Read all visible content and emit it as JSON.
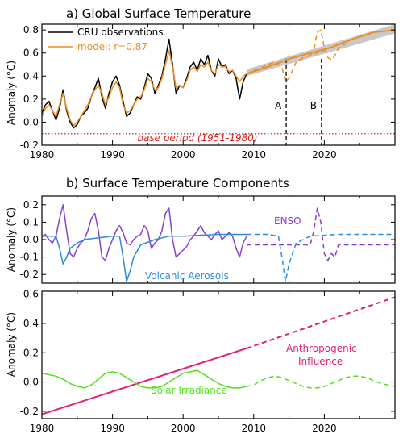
{
  "chart_data": [
    {
      "type": "line",
      "title": "a) Global Surface Temperature",
      "ylabel": "Anomaly (°C)",
      "xlim": [
        1980,
        2030
      ],
      "ylim": [
        -0.2,
        0.85
      ],
      "xticks": [
        1980,
        1990,
        2000,
        2010,
        2020
      ],
      "yticks": [
        -0.2,
        0.0,
        0.2,
        0.4,
        0.6,
        0.8
      ],
      "xtick_labels": [
        "1980",
        "1990",
        "2000",
        "2010",
        "2020"
      ],
      "ytick_labels": [
        "-0.2",
        "0.0",
        "0.2",
        "0.4",
        "0.6",
        "0.8"
      ],
      "series": [
        {
          "name": "CRU observations",
          "color": "#000000",
          "style": "solid",
          "x": [
            1980.0,
            1980.5,
            1981.0,
            1981.5,
            1982.0,
            1982.5,
            1983.0,
            1983.5,
            1984.0,
            1984.5,
            1985.0,
            1985.5,
            1986.0,
            1986.5,
            1987.0,
            1987.5,
            1988.0,
            1988.5,
            1989.0,
            1989.5,
            1990.0,
            1990.5,
            1991.0,
            1991.5,
            1992.0,
            1992.5,
            1993.0,
            1993.5,
            1994.0,
            1994.5,
            1995.0,
            1995.5,
            1996.0,
            1996.5,
            1997.0,
            1997.5,
            1998.0,
            1998.5,
            1999.0,
            1999.5,
            2000.0,
            2000.5,
            2001.0,
            2001.5,
            2002.0,
            2002.5,
            2003.0,
            2003.5,
            2004.0,
            2004.5,
            2005.0,
            2005.5,
            2006.0,
            2006.5,
            2007.0,
            2007.5,
            2008.0,
            2008.5,
            2009.0
          ],
          "values": [
            0.08,
            0.15,
            0.18,
            0.1,
            0.02,
            0.12,
            0.28,
            0.1,
            0.0,
            -0.05,
            -0.02,
            0.05,
            0.08,
            0.12,
            0.22,
            0.3,
            0.38,
            0.22,
            0.12,
            0.25,
            0.35,
            0.4,
            0.32,
            0.18,
            0.05,
            0.08,
            0.15,
            0.22,
            0.2,
            0.3,
            0.42,
            0.38,
            0.25,
            0.32,
            0.4,
            0.55,
            0.72,
            0.5,
            0.25,
            0.32,
            0.3,
            0.38,
            0.48,
            0.52,
            0.45,
            0.55,
            0.5,
            0.58,
            0.45,
            0.4,
            0.55,
            0.48,
            0.5,
            0.42,
            0.45,
            0.38,
            0.2,
            0.35,
            0.42
          ]
        },
        {
          "name": "model: r=0.87",
          "color": "#f08c1e",
          "style": "solid",
          "x": [
            1980.0,
            1980.5,
            1981.0,
            1981.5,
            1982.0,
            1982.5,
            1983.0,
            1983.5,
            1984.0,
            1984.5,
            1985.0,
            1985.5,
            1986.0,
            1986.5,
            1987.0,
            1987.5,
            1988.0,
            1988.5,
            1989.0,
            1989.5,
            1990.0,
            1990.5,
            1991.0,
            1991.5,
            1992.0,
            1992.5,
            1993.0,
            1993.5,
            1994.0,
            1994.5,
            1995.0,
            1995.5,
            1996.0,
            1996.5,
            1997.0,
            1997.5,
            1998.0,
            1998.5,
            1999.0,
            1999.5,
            2000.0,
            2000.5,
            2001.0,
            2001.5,
            2002.0,
            2002.5,
            2003.0,
            2003.5,
            2004.0,
            2004.5,
            2005.0,
            2005.5,
            2006.0,
            2006.5,
            2007.0,
            2007.5,
            2008.0,
            2008.5,
            2009.0
          ],
          "values": [
            0.05,
            0.12,
            0.15,
            0.1,
            0.05,
            0.15,
            0.25,
            0.12,
            0.02,
            -0.03,
            0.0,
            0.05,
            0.1,
            0.15,
            0.22,
            0.28,
            0.32,
            0.25,
            0.15,
            0.22,
            0.3,
            0.35,
            0.3,
            0.15,
            0.08,
            0.1,
            0.15,
            0.2,
            0.22,
            0.28,
            0.38,
            0.35,
            0.28,
            0.3,
            0.38,
            0.5,
            0.62,
            0.48,
            0.3,
            0.32,
            0.3,
            0.36,
            0.45,
            0.48,
            0.44,
            0.5,
            0.48,
            0.52,
            0.45,
            0.42,
            0.5,
            0.48,
            0.48,
            0.44,
            0.45,
            0.4,
            0.35,
            0.4,
            0.42
          ]
        },
        {
          "name": "projection A",
          "color": "#f08c1e",
          "style": "dashed",
          "x": [
            2009.0,
            2010.0,
            2011.0,
            2012.0,
            2013.0,
            2014.0,
            2014.5,
            2015.0,
            2015.5,
            2016.0,
            2017.0,
            2018.0,
            2019.0,
            2020.0
          ],
          "values": [
            0.42,
            0.45,
            0.47,
            0.5,
            0.52,
            0.48,
            0.35,
            0.38,
            0.45,
            0.52,
            0.56,
            0.58,
            0.6,
            0.62
          ]
        },
        {
          "name": "projection B",
          "color": "#f08c1e",
          "style": "dashed",
          "x": [
            2018.0,
            2018.5,
            2019.0,
            2019.5,
            2020.0,
            2020.5,
            2021.0,
            2021.5,
            2022.0,
            2023.0
          ],
          "values": [
            0.58,
            0.62,
            0.78,
            0.8,
            0.65,
            0.56,
            0.54,
            0.58,
            0.64,
            0.68
          ]
        },
        {
          "name": "trend",
          "color": "#f08c1e",
          "style": "solid",
          "x": [
            2009.0,
            2012.0,
            2015.0,
            2018.0,
            2021.0,
            2024.0,
            2027.0,
            2030.0
          ],
          "values": [
            0.42,
            0.48,
            0.55,
            0.6,
            0.65,
            0.72,
            0.78,
            0.8
          ]
        }
      ],
      "base_line": {
        "value": -0.1,
        "label": "base period (1951-1980)",
        "color": "#d62020"
      },
      "markers": [
        {
          "label": "A",
          "x": 2014.6
        },
        {
          "label": "B",
          "x": 2019.6
        }
      ],
      "legend_placement": "top-left"
    },
    {
      "type": "line",
      "title": "b) Surface Temperature Components",
      "ylabel": "Anomaly (°C)",
      "xlim": [
        1980,
        2030
      ],
      "ylim": [
        -0.25,
        0.25
      ],
      "yticks": [
        -0.2,
        -0.1,
        0.0,
        0.1,
        0.2
      ],
      "ytick_labels": [
        "-0.2",
        "-0.1",
        "0.0",
        "0.1",
        "0.2"
      ],
      "series": [
        {
          "name": "ENSO",
          "color": "#8a3fd0",
          "style": "solid",
          "x": [
            1980.0,
            1980.5,
            1981.0,
            1981.5,
            1982.0,
            1982.5,
            1983.0,
            1983.5,
            1984.0,
            1984.5,
            1985.0,
            1985.5,
            1986.0,
            1986.5,
            1987.0,
            1987.5,
            1988.0,
            1988.5,
            1989.0,
            1989.5,
            1990.0,
            1990.5,
            1991.0,
            1991.5,
            1992.0,
            1992.5,
            1993.0,
            1993.5,
            1994.0,
            1994.5,
            1995.0,
            1995.5,
            1996.0,
            1996.5,
            1997.0,
            1997.5,
            1998.0,
            1998.5,
            1999.0,
            1999.5,
            2000.0,
            2000.5,
            2001.0,
            2001.5,
            2002.0,
            2002.5,
            2003.0,
            2003.5,
            2004.0,
            2004.5,
            2005.0,
            2005.5,
            2006.0,
            2006.5,
            2007.0,
            2007.5,
            2008.0,
            2008.5,
            2009.0
          ],
          "values": [
            0.02,
            0.03,
            0.0,
            -0.02,
            0.02,
            0.12,
            0.2,
            0.05,
            -0.08,
            -0.1,
            -0.05,
            -0.02,
            0.0,
            0.05,
            0.12,
            0.15,
            0.05,
            -0.1,
            -0.12,
            -0.05,
            0.0,
            0.05,
            0.08,
            0.04,
            -0.02,
            -0.03,
            0.0,
            0.02,
            0.03,
            0.08,
            0.05,
            -0.05,
            -0.02,
            0.0,
            0.05,
            0.15,
            0.18,
            0.0,
            -0.1,
            -0.08,
            -0.06,
            -0.04,
            0.0,
            0.02,
            0.05,
            0.08,
            0.04,
            0.02,
            0.0,
            0.03,
            0.05,
            0.0,
            0.02,
            0.04,
            0.02,
            -0.05,
            -0.1,
            -0.02,
            0.02
          ]
        },
        {
          "name": "ENSO projection",
          "color": "#8a3fd0",
          "style": "dashed",
          "x": [
            2009.0,
            2012.0,
            2015.0,
            2018.0,
            2018.5,
            2019.0,
            2019.5,
            2020.0,
            2020.5,
            2021.0,
            2021.5,
            2022.0,
            2026.0,
            2030.0
          ],
          "values": [
            -0.03,
            -0.03,
            -0.03,
            -0.03,
            0.05,
            0.18,
            0.1,
            -0.08,
            -0.12,
            -0.08,
            -0.1,
            -0.03,
            -0.03,
            -0.03
          ]
        },
        {
          "name": "Volcanic Aerosols",
          "color": "#2a8be0",
          "style": "solid",
          "x": [
            1980.0,
            1981.0,
            1982.0,
            1982.5,
            1983.0,
            1983.5,
            1984.0,
            1985.0,
            1986.0,
            1988.0,
            1990.0,
            1991.0,
            1991.5,
            1992.0,
            1992.5,
            1993.0,
            1994.0,
            1996.0,
            1998.0,
            2000.0,
            2005.0,
            2009.0
          ],
          "values": [
            0.02,
            0.02,
            0.02,
            -0.05,
            -0.14,
            -0.1,
            -0.05,
            -0.02,
            0.0,
            0.01,
            0.02,
            0.02,
            -0.1,
            -0.24,
            -0.18,
            -0.1,
            -0.03,
            0.0,
            0.02,
            0.02,
            0.03,
            0.03
          ],
          "label": "Volcanic Aerosols"
        },
        {
          "name": "Volcanic projection",
          "color": "#2a8be0",
          "style": "dashed",
          "x": [
            2009.0,
            2012.0,
            2013.5,
            2014.0,
            2014.5,
            2015.0,
            2016.0,
            2018.0,
            2022.0,
            2030.0
          ],
          "values": [
            0.03,
            0.03,
            0.02,
            -0.1,
            -0.24,
            -0.14,
            -0.02,
            0.02,
            0.03,
            0.03
          ]
        }
      ]
    },
    {
      "type": "line",
      "ylabel": "Anomaly (°C)",
      "xlim": [
        1980,
        2030
      ],
      "ylim": [
        -0.25,
        0.62
      ],
      "xticks": [
        1980,
        1990,
        2000,
        2010,
        2020
      ],
      "yticks": [
        -0.2,
        0.0,
        0.2,
        0.4,
        0.6
      ],
      "xtick_labels": [
        "1980",
        "1990",
        "2000",
        "2010",
        "2020"
      ],
      "ytick_labels": [
        "-0.2",
        "0.0",
        "0.2",
        "0.4",
        "0.6"
      ],
      "series": [
        {
          "name": "Anthropogenic Influence",
          "color": "#e0207a",
          "style": "solid",
          "x": [
            1980,
            2009
          ],
          "values": [
            -0.22,
            0.23
          ]
        },
        {
          "name": "Anthropogenic projection",
          "color": "#e0207a",
          "style": "dashed",
          "x": [
            2009,
            2030
          ],
          "values": [
            0.23,
            0.58
          ]
        },
        {
          "name": "Solar Irradiance",
          "color": "#50e020",
          "style": "solid",
          "x": [
            1980.0,
            1981.0,
            1982.0,
            1983.0,
            1984.0,
            1985.0,
            1986.0,
            1987.0,
            1988.0,
            1989.0,
            1990.0,
            1991.0,
            1992.0,
            1993.0,
            1994.0,
            1995.0,
            1996.0,
            1997.0,
            1998.0,
            1999.0,
            2000.0,
            2001.0,
            2002.0,
            2003.0,
            2004.0,
            2005.0,
            2006.0,
            2007.0,
            2008.0,
            2009.0
          ],
          "values": [
            0.06,
            0.05,
            0.04,
            0.02,
            -0.01,
            -0.03,
            -0.04,
            -0.02,
            0.02,
            0.06,
            0.07,
            0.06,
            0.03,
            0.0,
            -0.03,
            -0.04,
            -0.04,
            -0.03,
            0.0,
            0.03,
            0.06,
            0.07,
            0.08,
            0.05,
            0.02,
            -0.01,
            -0.03,
            -0.04,
            -0.04,
            -0.03
          ]
        },
        {
          "name": "Solar projection",
          "color": "#50e020",
          "style": "dashed",
          "x": [
            2009.0,
            2010.0,
            2011.0,
            2012.0,
            2013.0,
            2014.0,
            2015.0,
            2016.0,
            2017.0,
            2018.0,
            2019.0,
            2020.0,
            2021.0,
            2022.0,
            2023.0,
            2024.0,
            2025.0,
            2026.0,
            2027.0,
            2028.0,
            2029.0,
            2030.0
          ],
          "values": [
            -0.03,
            -0.02,
            0.01,
            0.03,
            0.04,
            0.03,
            0.01,
            -0.01,
            -0.03,
            -0.04,
            -0.04,
            -0.03,
            -0.01,
            0.01,
            0.03,
            0.04,
            0.04,
            0.03,
            0.01,
            -0.01,
            -0.02,
            -0.03
          ]
        }
      ]
    }
  ],
  "labels": {
    "marker_a": "A",
    "marker_b": "B",
    "enso": "ENSO",
    "volcanic": "Volcanic Aerosols",
    "anthro_1": "Anthropogenic",
    "anthro_2": "Influence",
    "solar": "Solar Irradiance",
    "legend_obs": "CRU observations",
    "legend_model": "model: r=0.87",
    "base_period": "base period (1951-1980)"
  }
}
